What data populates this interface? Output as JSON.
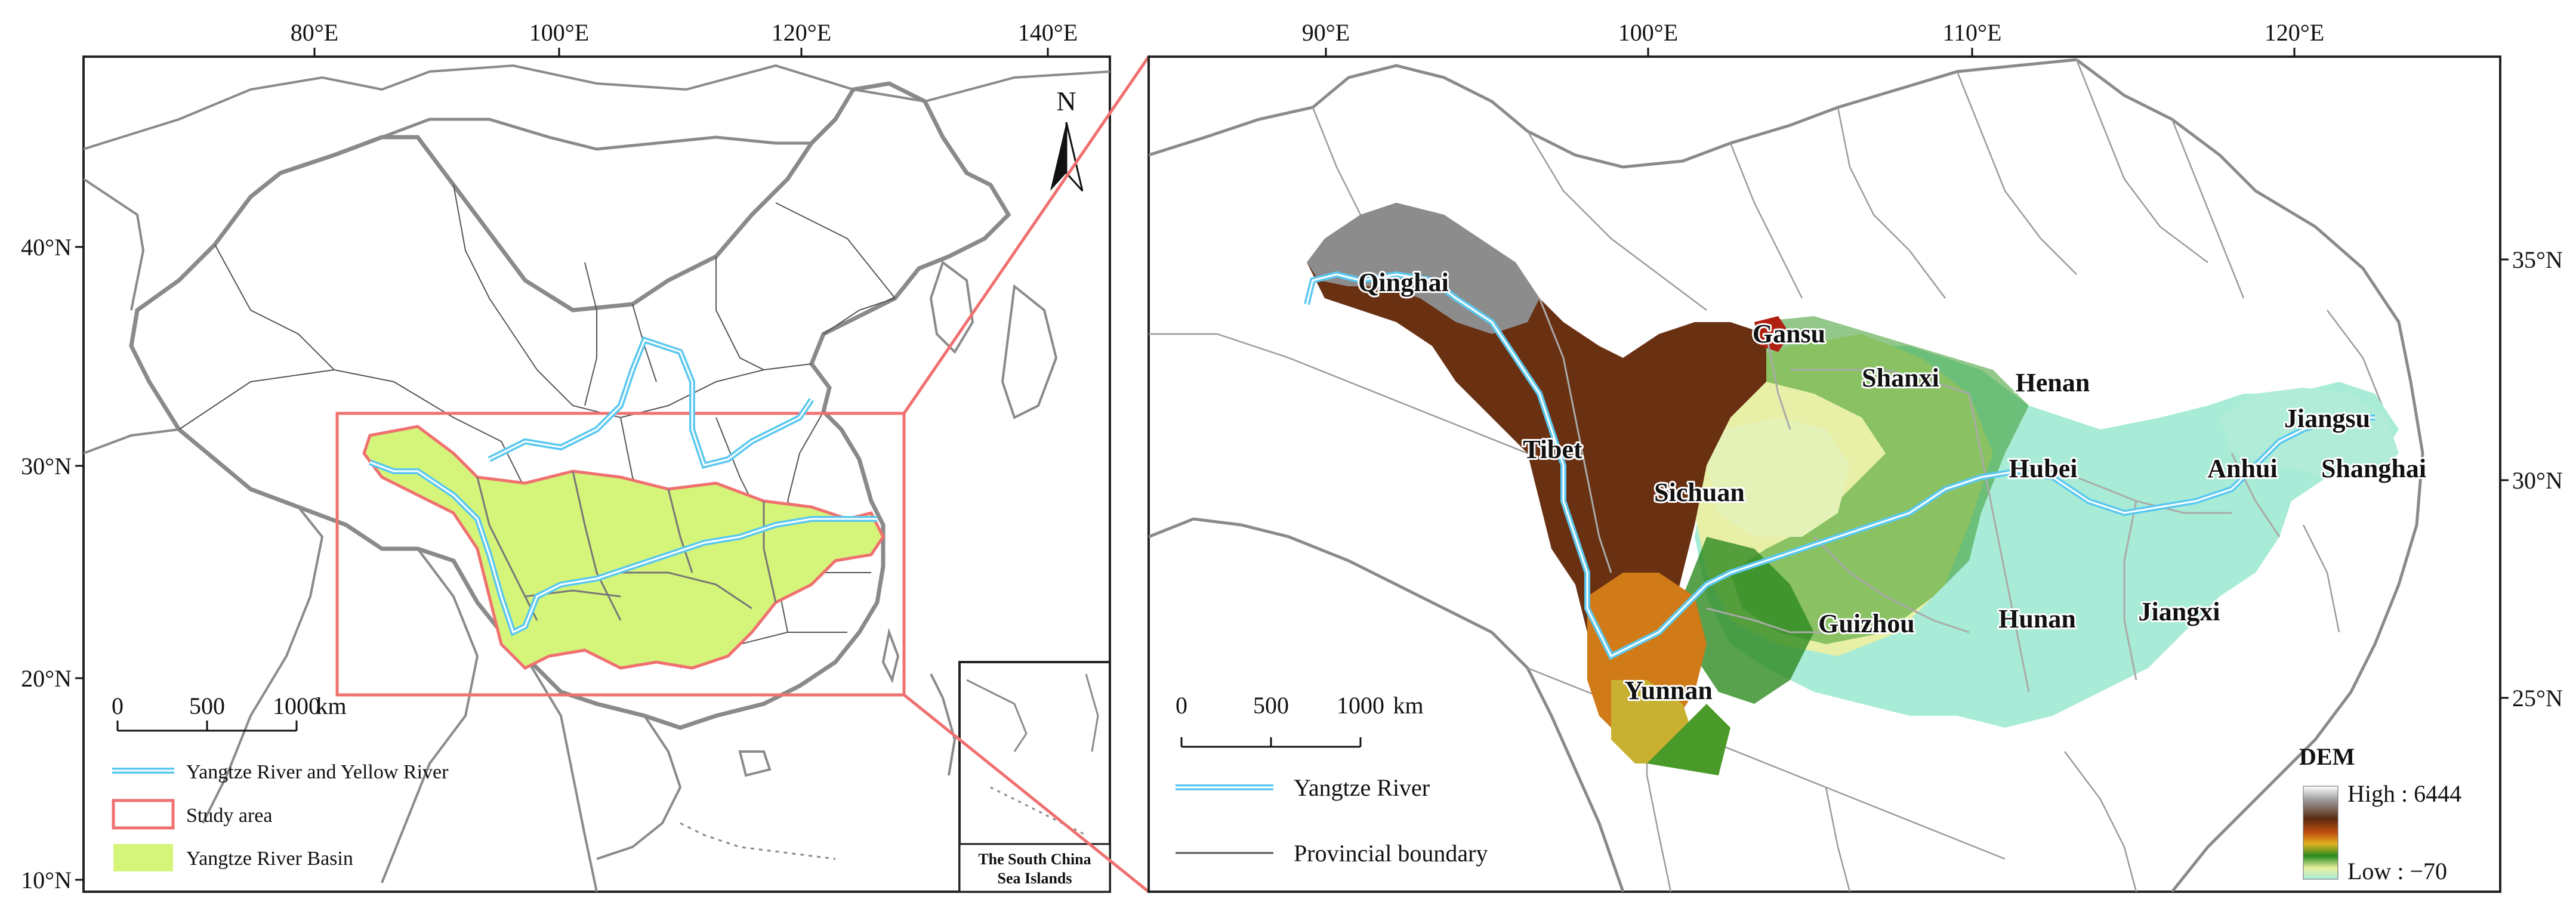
{
  "left_map": {
    "lon_ticks": [
      "80°E",
      "100°E",
      "120°E",
      "140°E"
    ],
    "lat_ticks": [
      "40°N",
      "30°N",
      "20°N",
      "10°N"
    ],
    "north_arrow": "N",
    "scale_bar": {
      "labels": [
        "0",
        "500",
        "1000"
      ],
      "unit": "km"
    },
    "legend": [
      {
        "label": "Yangtze River and Yellow River",
        "symbol": "double-blue-line"
      },
      {
        "label": "Study area",
        "symbol": "red-outline-box"
      },
      {
        "label": "Yangtze River Basin",
        "symbol": "green-fill-box"
      }
    ],
    "inset_title": [
      "The South China",
      "Sea Islands"
    ]
  },
  "right_map": {
    "lon_ticks": [
      "90°E",
      "100°E",
      "110°E",
      "120°E"
    ],
    "lat_ticks": [
      "35°N",
      "30°N",
      "25°N"
    ],
    "provinces": [
      "Qinghai",
      "Gansu",
      "Shanxi",
      "Henan",
      "Tibet",
      "Sichuan",
      "Hubei",
      "Anhui",
      "Jiangsu",
      "Shanghai",
      "Guizhou",
      "Hunan",
      "Jiangxi",
      "Yunnan"
    ],
    "scale_bar": {
      "labels": [
        "0",
        "500",
        "1000"
      ],
      "unit": "km"
    },
    "legend": [
      {
        "label": "Yangtze River",
        "symbol": "double-blue-line"
      },
      {
        "label": "Provincial boundary",
        "symbol": "grey-line"
      }
    ],
    "dem": {
      "title": "DEM",
      "high_label": "High : 6444",
      "low_label": "Low : −70",
      "high": 6444,
      "low": -70
    }
  },
  "colors": {
    "basin_fill": "#d4f57a",
    "study_area": "#f08080",
    "river": "#5bc8f0",
    "boundary": "#888888"
  }
}
